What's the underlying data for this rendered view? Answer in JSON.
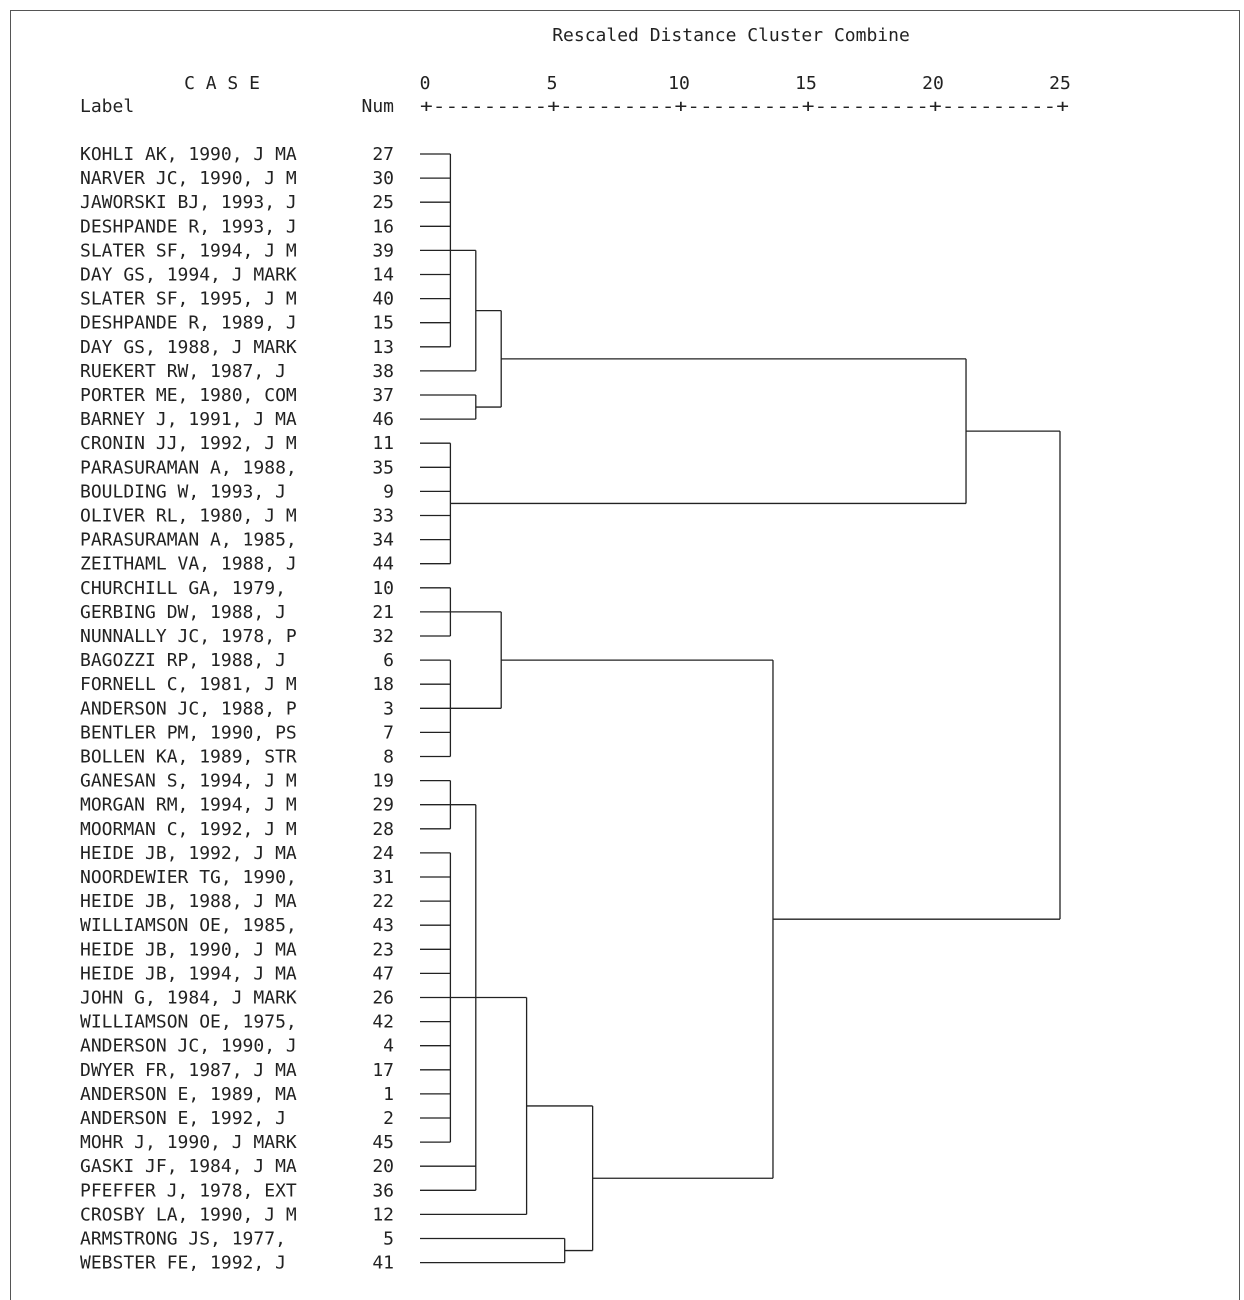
{
  "title": "Rescaled Distance Cluster Combine",
  "header": {
    "case_label": "C A S E",
    "label_col": "Label",
    "num_col": "Num",
    "scale_rule": "+---------+---------+---------+---------+---------+"
  },
  "axis": {
    "ticks": [
      0,
      5,
      10,
      15,
      20,
      25
    ],
    "range": [
      0,
      25
    ]
  },
  "cases": [
    {
      "label": "KOHLI AK, 1990, J MA",
      "num": "27"
    },
    {
      "label": "NARVER JC, 1990, J M",
      "num": "30"
    },
    {
      "label": "JAWORSKI BJ, 1993, J",
      "num": "25"
    },
    {
      "label": "DESHPANDE R, 1993, J",
      "num": "16"
    },
    {
      "label": "SLATER SF, 1994, J M",
      "num": "39"
    },
    {
      "label": "DAY GS, 1994, J MARK",
      "num": "14"
    },
    {
      "label": "SLATER SF, 1995, J M",
      "num": "40"
    },
    {
      "label": "DESHPANDE R, 1989, J",
      "num": "15"
    },
    {
      "label": "DAY GS, 1988, J MARK",
      "num": "13"
    },
    {
      "label": "RUEKERT RW, 1987, J",
      "num": "38"
    },
    {
      "label": "PORTER ME, 1980, COM",
      "num": "37"
    },
    {
      "label": "BARNEY J, 1991, J MA",
      "num": "46"
    },
    {
      "label": "CRONIN JJ, 1992, J M",
      "num": "11"
    },
    {
      "label": "PARASURAMAN A, 1988,",
      "num": "35"
    },
    {
      "label": "BOULDING W, 1993, J",
      "num": "9"
    },
    {
      "label": "OLIVER RL, 1980, J M",
      "num": "33"
    },
    {
      "label": "PARASURAMAN A, 1985,",
      "num": "34"
    },
    {
      "label": "ZEITHAML VA, 1988, J",
      "num": "44"
    },
    {
      "label": "CHURCHILL GA, 1979,",
      "num": "10"
    },
    {
      "label": "GERBING DW, 1988, J",
      "num": "21"
    },
    {
      "label": "NUNNALLY JC, 1978, P",
      "num": "32"
    },
    {
      "label": "BAGOZZI RP, 1988, J",
      "num": "6"
    },
    {
      "label": "FORNELL C, 1981, J M",
      "num": "18"
    },
    {
      "label": "ANDERSON JC, 1988, P",
      "num": "3"
    },
    {
      "label": "BENTLER PM, 1990, PS",
      "num": "7"
    },
    {
      "label": "BOLLEN KA, 1989, STR",
      "num": "8"
    },
    {
      "label": "GANESAN S, 1994, J M",
      "num": "19"
    },
    {
      "label": "MORGAN RM, 1994, J M",
      "num": "29"
    },
    {
      "label": "MOORMAN C, 1992, J M",
      "num": "28"
    },
    {
      "label": "HEIDE JB, 1992, J MA",
      "num": "24"
    },
    {
      "label": "NOORDEWIER TG, 1990,",
      "num": "31"
    },
    {
      "label": "HEIDE JB, 1988, J MA",
      "num": "22"
    },
    {
      "label": "WILLIAMSON OE, 1985,",
      "num": "43"
    },
    {
      "label": "HEIDE JB, 1990, J MA",
      "num": "23"
    },
    {
      "label": "HEIDE JB, 1994, J MA",
      "num": "47"
    },
    {
      "label": "JOHN G, 1984, J MARK",
      "num": "26"
    },
    {
      "label": "WILLIAMSON OE, 1975,",
      "num": "42"
    },
    {
      "label": "ANDERSON JC, 1990, J",
      "num": "4"
    },
    {
      "label": "DWYER FR, 1987, J MA",
      "num": "17"
    },
    {
      "label": "ANDERSON E, 1989, MA",
      "num": "1"
    },
    {
      "label": "ANDERSON E, 1992, J",
      "num": "2"
    },
    {
      "label": "MOHR J, 1990, J MARK",
      "num": "45"
    },
    {
      "label": "GASKI JF, 1984, J MA",
      "num": "20"
    },
    {
      "label": "PFEFFER J, 1978, EXT",
      "num": "36"
    },
    {
      "label": "CROSBY LA, 1990, J M",
      "num": "12"
    },
    {
      "label": "ARMSTRONG JS, 1977,",
      "num": "5"
    },
    {
      "label": "WEBSTER FE, 1992, J",
      "num": "41"
    }
  ],
  "merges": [
    {
      "children": [
        0,
        1,
        2,
        3,
        4,
        5,
        6,
        7,
        8
      ],
      "height": 1
    },
    {
      "children": [
        "m0",
        9
      ],
      "height": 2
    },
    {
      "children": [
        10,
        11
      ],
      "height": 2
    },
    {
      "children": [
        "m1",
        "m2"
      ],
      "height": 3
    },
    {
      "children": [
        12,
        13,
        14,
        15,
        16,
        17
      ],
      "height": 1
    },
    {
      "children": [
        "m3",
        "m4"
      ],
      "height": 21.3
    },
    {
      "children": [
        18,
        19,
        20
      ],
      "height": 1
    },
    {
      "children": [
        21,
        22,
        23,
        24,
        25
      ],
      "height": 1
    },
    {
      "children": [
        "m6",
        "m7"
      ],
      "height": 3
    },
    {
      "children": [
        26,
        27,
        28
      ],
      "height": 1
    },
    {
      "children": [
        29,
        30,
        31,
        32,
        33,
        34,
        35,
        36,
        37,
        38,
        39,
        40,
        41
      ],
      "height": 1
    },
    {
      "children": [
        "m9",
        "m10",
        42,
        43
      ],
      "height": 2
    },
    {
      "children": [
        "m11",
        44
      ],
      "height": 4
    },
    {
      "children": [
        45,
        46
      ],
      "height": 5.5
    },
    {
      "children": [
        "m12",
        "m13"
      ],
      "height": 6.6
    },
    {
      "children": [
        "m8",
        "m14"
      ],
      "height": 13.7
    },
    {
      "children": [
        "m5",
        "m15"
      ],
      "height": 25
    }
  ]
}
